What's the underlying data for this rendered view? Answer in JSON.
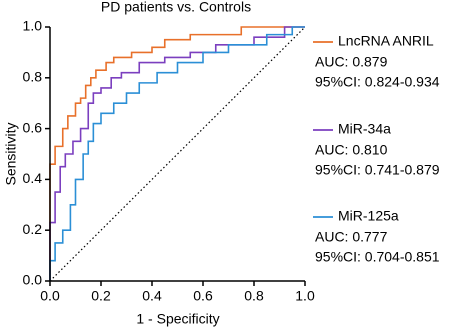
{
  "chart_data": {
    "type": "line",
    "title": "PD patients vs. Controls",
    "x_label": "1 - Specificity",
    "y_label": "Sensitivity",
    "xlim": [
      0,
      1
    ],
    "ylim": [
      0,
      1
    ],
    "xticks": [
      {
        "value": 0,
        "label": "0.0"
      },
      0.2,
      0.4,
      0.6,
      0.8,
      {
        "value": 1,
        "label": "1.0"
      }
    ],
    "yticks": [
      {
        "value": 0,
        "label": "0.0"
      },
      0.2,
      0.4,
      0.6,
      0.8,
      {
        "value": 1,
        "label": "1.0"
      }
    ],
    "grid": false,
    "legend": "right",
    "series": [
      {
        "name": "LncRNA ANRIL",
        "auc": "AUC: 0.879",
        "ci": "95%CI: 0.824-0.934",
        "color": "#e8702a",
        "x": [
          0,
          0,
          0.02,
          0.02,
          0.05,
          0.05,
          0.07,
          0.07,
          0.1,
          0.1,
          0.12,
          0.12,
          0.14,
          0.14,
          0.16,
          0.16,
          0.18,
          0.18,
          0.22,
          0.22,
          0.25,
          0.25,
          0.32,
          0.32,
          0.4,
          0.4,
          0.45,
          0.45,
          0.55,
          0.55,
          0.75,
          0.75,
          1
        ],
        "values": [
          0,
          0.46,
          0.46,
          0.53,
          0.53,
          0.6,
          0.6,
          0.65,
          0.65,
          0.7,
          0.7,
          0.72,
          0.72,
          0.77,
          0.77,
          0.8,
          0.8,
          0.83,
          0.83,
          0.86,
          0.86,
          0.88,
          0.88,
          0.9,
          0.9,
          0.92,
          0.92,
          0.95,
          0.95,
          0.97,
          0.97,
          1,
          1
        ]
      },
      {
        "name": "MiR-34a",
        "auc": "AUC: 0.810",
        "ci": "95%CI: 0.741-0.879",
        "color": "#7b3fbf",
        "x": [
          0,
          0,
          0.02,
          0.02,
          0.04,
          0.04,
          0.06,
          0.06,
          0.09,
          0.09,
          0.12,
          0.12,
          0.15,
          0.15,
          0.17,
          0.17,
          0.2,
          0.2,
          0.24,
          0.24,
          0.28,
          0.28,
          0.35,
          0.35,
          0.45,
          0.45,
          0.55,
          0.55,
          0.65,
          0.65,
          0.8,
          0.8,
          0.92,
          0.92,
          1
        ],
        "values": [
          0,
          0.23,
          0.23,
          0.35,
          0.35,
          0.45,
          0.45,
          0.5,
          0.5,
          0.55,
          0.55,
          0.6,
          0.6,
          0.7,
          0.7,
          0.74,
          0.74,
          0.76,
          0.76,
          0.8,
          0.8,
          0.82,
          0.82,
          0.86,
          0.86,
          0.88,
          0.88,
          0.9,
          0.9,
          0.93,
          0.93,
          0.96,
          0.96,
          1,
          1
        ]
      },
      {
        "name": "MiR-125a",
        "auc": "AUC: 0.777",
        "ci": "95%CI: 0.704-0.851",
        "color": "#2b8fd6",
        "x": [
          0,
          0,
          0.02,
          0.02,
          0.05,
          0.05,
          0.08,
          0.08,
          0.1,
          0.1,
          0.13,
          0.13,
          0.15,
          0.15,
          0.17,
          0.17,
          0.2,
          0.2,
          0.25,
          0.25,
          0.3,
          0.3,
          0.35,
          0.35,
          0.42,
          0.42,
          0.5,
          0.5,
          0.6,
          0.6,
          0.7,
          0.7,
          0.85,
          0.85,
          0.95,
          0.95,
          1
        ],
        "values": [
          0,
          0.08,
          0.08,
          0.15,
          0.15,
          0.2,
          0.2,
          0.3,
          0.3,
          0.4,
          0.4,
          0.5,
          0.5,
          0.55,
          0.55,
          0.62,
          0.62,
          0.66,
          0.66,
          0.7,
          0.7,
          0.74,
          0.74,
          0.78,
          0.78,
          0.82,
          0.82,
          0.86,
          0.86,
          0.9,
          0.9,
          0.93,
          0.93,
          0.97,
          0.97,
          1,
          1
        ]
      }
    ]
  }
}
